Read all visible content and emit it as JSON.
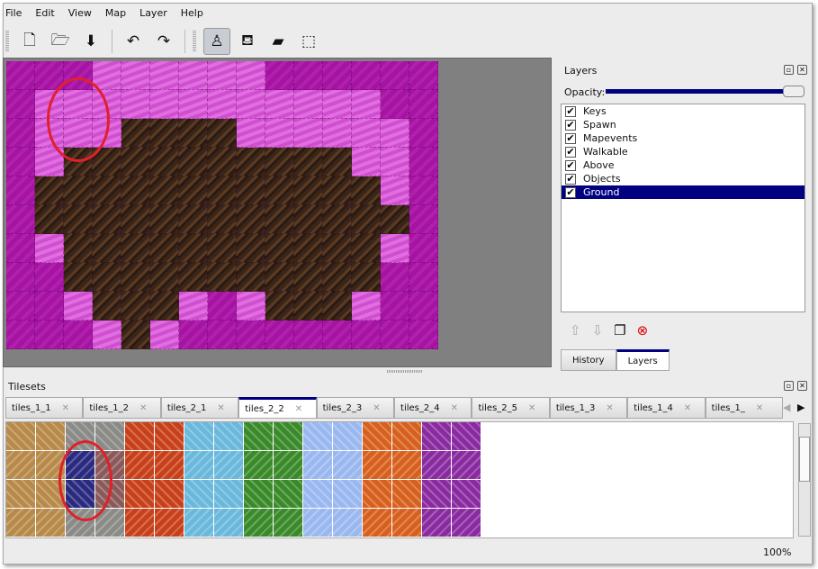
{
  "menu": [
    "File",
    "Edit",
    "View",
    "Map",
    "Layer",
    "Help"
  ],
  "toolbar": [
    {
      "name": "new-file",
      "glyph": "🗋"
    },
    {
      "name": "open",
      "glyph": "🗁"
    },
    {
      "name": "save",
      "glyph": "⬇"
    },
    {
      "name": "undo",
      "glyph": "↶"
    },
    {
      "name": "redo",
      "glyph": "↷"
    },
    {
      "name": "stamp-brush",
      "glyph": "♙",
      "active": true
    },
    {
      "name": "bucket-fill",
      "glyph": "⛾"
    },
    {
      "name": "eraser",
      "glyph": "▰"
    },
    {
      "name": "rect-select",
      "glyph": "⬚"
    }
  ],
  "map_rows": [
    "PPPLLLLLLPPPPPP",
    "PLLLLLLLLLLLLPP",
    "PLLLDDDDLLLLLLP",
    "PLDDDDDDDDDDLLP",
    "PDDDDDDDDDDDDLP",
    "PDDDDDDDDDDDDDP",
    "PLDDDDDDDDDDDLP",
    "PPDDDDDDDDDDDPP",
    "PPLDDDLPLDDDLPP",
    "PPPLDLPPPPPPPPP"
  ],
  "layers_panel": {
    "title": "Layers",
    "opacity_label": "Opacity:",
    "opacity": 1.0,
    "items": [
      {
        "name": "Keys",
        "visible": true
      },
      {
        "name": "Spawn",
        "visible": true
      },
      {
        "name": "Mapevents",
        "visible": true
      },
      {
        "name": "Walkable",
        "visible": true
      },
      {
        "name": "Above",
        "visible": true
      },
      {
        "name": "Objects",
        "visible": true
      },
      {
        "name": "Ground",
        "visible": true,
        "selected": true
      }
    ],
    "bottom_tabs": [
      "History",
      "Layers"
    ],
    "active_bottom_tab": "Layers"
  },
  "tilesets": {
    "title": "Tilesets",
    "tabs": [
      "tiles_1_1",
      "tiles_1_2",
      "tiles_2_1",
      "tiles_2_2",
      "tiles_2_3",
      "tiles_2_4",
      "tiles_2_5",
      "tiles_1_3",
      "tiles_1_4",
      "tiles_1_"
    ],
    "active": "tiles_2_2",
    "colors": [
      "#b88a4a",
      "#8a8a86",
      "#c8401a",
      "#6ab8dc",
      "#3a8a2a",
      "#9ab8f0",
      "#d8601e",
      "#8a2aa0"
    ]
  },
  "status": {
    "zoom": "100%"
  }
}
